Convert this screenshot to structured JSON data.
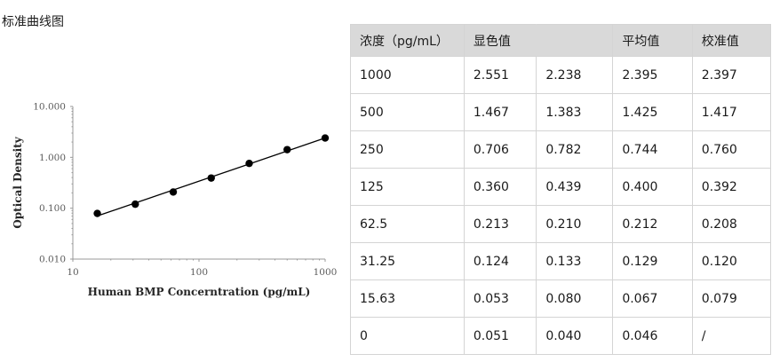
{
  "page_title": "标准曲线图",
  "table": {
    "headers": [
      "浓度（pg/mL）",
      "显色值",
      "",
      "平均值",
      "校准值"
    ],
    "rows": [
      [
        "1000",
        "2.551",
        "2.238",
        "2.395",
        "2.397"
      ],
      [
        "500",
        "1.467",
        "1.383",
        "1.425",
        "1.417"
      ],
      [
        "250",
        "0.706",
        "0.782",
        "0.744",
        "0.760"
      ],
      [
        "125",
        "0.360",
        "0.439",
        "0.400",
        "0.392"
      ],
      [
        "62.5",
        "0.213",
        "0.210",
        "0.212",
        "0.208"
      ],
      [
        "31.25",
        "0.124",
        "0.133",
        "0.129",
        "0.120"
      ],
      [
        "15.63",
        "0.053",
        "0.080",
        "0.067",
        "0.079"
      ],
      [
        "0",
        "0.051",
        "0.040",
        "0.046",
        "/"
      ]
    ]
  },
  "chart_data": {
    "type": "scatter",
    "xlabel": "Human BMP Concerntration (pg/mL)",
    "ylabel": "Optical Density",
    "x_scale": "log",
    "y_scale": "log",
    "xlim": [
      10,
      1000
    ],
    "ylim": [
      0.01,
      10
    ],
    "x_ticks": [
      "10",
      "100",
      "1000"
    ],
    "y_ticks": [
      "0.010",
      "0.100",
      "1.000",
      "10.000"
    ],
    "points": [
      {
        "x": 15.63,
        "y": 0.079
      },
      {
        "x": 31.25,
        "y": 0.12
      },
      {
        "x": 62.5,
        "y": 0.208
      },
      {
        "x": 125,
        "y": 0.392
      },
      {
        "x": 250,
        "y": 0.76
      },
      {
        "x": 500,
        "y": 1.417
      },
      {
        "x": 1000,
        "y": 2.397
      }
    ],
    "trendline": true,
    "grid": false,
    "legend": false,
    "colors": {
      "marker": "#000000",
      "axis": "#999999"
    }
  }
}
